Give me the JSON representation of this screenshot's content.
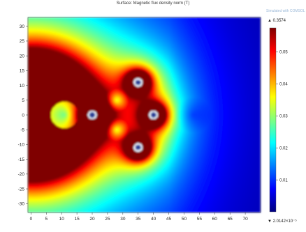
{
  "header": {
    "title": "Surface: Magnetic flux density norm (T)",
    "watermark": "Simulated with COMSOL"
  },
  "colorbar": {
    "max_label": "▲ 0.3574",
    "min_label": "▼ 2.0142×10⁻⁵",
    "tick_labels": [
      "0.05",
      "0.04",
      "0.03",
      "0.02",
      "0.01"
    ],
    "colors": [
      "#00007f",
      "#0000ff",
      "#007fff",
      "#00ffff",
      "#7fff7f",
      "#ffff00",
      "#ff7f00",
      "#ff0000",
      "#7f0000"
    ]
  },
  "chart_data": {
    "type": "heatmap",
    "title": "Surface: Magnetic flux density norm (T)",
    "xlim": [
      -1,
      75
    ],
    "ylim": [
      -33,
      33
    ],
    "x_ticks": [
      0,
      5,
      10,
      15,
      20,
      25,
      30,
      35,
      40,
      45,
      50,
      55,
      60,
      65,
      70
    ],
    "y_ticks": [
      30,
      25,
      20,
      15,
      10,
      5,
      0,
      -5,
      -10,
      -15,
      -20,
      -25,
      -30
    ],
    "x_tick_labels": [
      "0",
      "5",
      "10",
      "15",
      "20",
      "25",
      "30",
      "35",
      "40",
      "45",
      "50",
      "55",
      "60",
      "65",
      "70"
    ],
    "y_tick_labels": [
      "30",
      "25",
      "20",
      "15",
      "10",
      "5",
      "0",
      "-5",
      "-10",
      "-15",
      "-20",
      "-25",
      "-30"
    ],
    "color_range": [
      2.0142e-05,
      0.3574
    ],
    "colorbar_ticks": [
      0.05,
      0.04,
      0.03,
      0.02,
      0.01
    ],
    "conductors": [
      {
        "x": 20,
        "y": 0
      },
      {
        "x": 35,
        "y": 11
      },
      {
        "x": 40,
        "y": 0
      },
      {
        "x": 35,
        "y": -11
      }
    ],
    "large_source": {
      "x": 0,
      "y": 0
    },
    "grid": false
  }
}
